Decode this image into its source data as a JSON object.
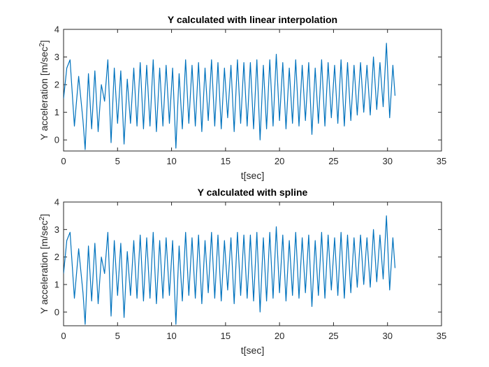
{
  "chart_data": [
    {
      "type": "line",
      "title": "Y calculated with linear interpolation",
      "xlabel": "t[sec]",
      "ylabel": "Y  acceleration  [m/sec",
      "ylabel_sup": "2",
      "ylabel_end": "]",
      "xlim": [
        0,
        35
      ],
      "ylim": [
        -0.4,
        4
      ],
      "xticks": [
        "0",
        "5",
        "10",
        "15",
        "20",
        "25",
        "30",
        "35"
      ],
      "yticks": [
        "0",
        "1",
        "2",
        "3",
        "4"
      ],
      "grid": false,
      "series": [
        {
          "color": "#0072BD",
          "x": [
            0,
            0.3,
            0.6,
            1.0,
            1.4,
            1.8,
            2.0,
            2.3,
            2.6,
            2.9,
            3.2,
            3.5,
            3.8,
            4.1,
            4.4,
            4.7,
            5.0,
            5.3,
            5.6,
            5.9,
            6.2,
            6.5,
            6.8,
            7.1,
            7.4,
            7.7,
            8.0,
            8.3,
            8.6,
            8.9,
            9.2,
            9.5,
            9.8,
            10.1,
            10.4,
            10.7,
            11.0,
            11.3,
            11.6,
            11.9,
            12.2,
            12.5,
            12.8,
            13.1,
            13.4,
            13.7,
            14.0,
            14.3,
            14.6,
            14.9,
            15.2,
            15.5,
            15.8,
            16.1,
            16.4,
            16.7,
            17.0,
            17.3,
            17.6,
            17.9,
            18.2,
            18.5,
            18.8,
            19.1,
            19.4,
            19.7,
            20.0,
            20.3,
            20.6,
            20.9,
            21.2,
            21.5,
            21.8,
            22.1,
            22.4,
            22.7,
            23.0,
            23.3,
            23.6,
            23.9,
            24.2,
            24.5,
            24.8,
            25.1,
            25.4,
            25.7,
            26.0,
            26.3,
            26.6,
            26.9,
            27.2,
            27.5,
            27.8,
            28.1,
            28.4,
            28.7,
            29.0,
            29.3,
            29.6,
            29.9,
            30.2,
            30.5,
            30.7
          ],
          "values": [
            1.5,
            2.6,
            2.9,
            0.5,
            2.3,
            0.7,
            -0.35,
            2.4,
            0.4,
            2.5,
            0.3,
            2.0,
            1.4,
            2.9,
            -0.1,
            2.6,
            0.6,
            2.5,
            -0.15,
            2.2,
            0.6,
            2.6,
            0.5,
            2.8,
            0.4,
            2.7,
            0.5,
            2.9,
            0.3,
            2.6,
            0.5,
            2.7,
            0.6,
            2.6,
            -0.3,
            2.4,
            0.4,
            2.9,
            0.6,
            2.7,
            0.5,
            2.8,
            0.3,
            2.6,
            0.7,
            2.9,
            0.5,
            2.8,
            0.4,
            2.6,
            0.8,
            2.7,
            0.3,
            2.9,
            0.6,
            2.8,
            0.5,
            2.8,
            0.4,
            2.9,
            0.0,
            2.7,
            0.4,
            2.9,
            0.5,
            3.1,
            0.7,
            2.8,
            0.4,
            2.6,
            0.6,
            2.9,
            0.5,
            2.7,
            0.7,
            2.8,
            0.2,
            2.6,
            0.6,
            2.9,
            0.5,
            2.8,
            0.8,
            2.7,
            0.6,
            2.9,
            0.5,
            2.8,
            0.7,
            2.7,
            0.9,
            2.8,
            1.0,
            2.7,
            0.9,
            3.0,
            1.1,
            2.8,
            1.2,
            3.5,
            0.8,
            2.7,
            1.6
          ]
        }
      ]
    },
    {
      "type": "line",
      "title": "Y calculated with spline",
      "xlabel": "t[sec]",
      "ylabel": "Y  acceleration  [m/sec",
      "ylabel_sup": "2",
      "ylabel_end": "]",
      "xlim": [
        0,
        35
      ],
      "ylim": [
        -0.5,
        4
      ],
      "xticks": [
        "0",
        "5",
        "10",
        "15",
        "20",
        "25",
        "30",
        "35"
      ],
      "yticks": [
        "0",
        "1",
        "2",
        "3",
        "4"
      ],
      "grid": false,
      "series": [
        {
          "color": "#0072BD",
          "x": [
            0,
            0.3,
            0.6,
            1.0,
            1.4,
            1.8,
            2.0,
            2.3,
            2.6,
            2.9,
            3.2,
            3.5,
            3.8,
            4.1,
            4.4,
            4.7,
            5.0,
            5.3,
            5.6,
            5.9,
            6.2,
            6.5,
            6.8,
            7.1,
            7.4,
            7.7,
            8.0,
            8.3,
            8.6,
            8.9,
            9.2,
            9.5,
            9.8,
            10.1,
            10.4,
            10.7,
            11.0,
            11.3,
            11.6,
            11.9,
            12.2,
            12.5,
            12.8,
            13.1,
            13.4,
            13.7,
            14.0,
            14.3,
            14.6,
            14.9,
            15.2,
            15.5,
            15.8,
            16.1,
            16.4,
            16.7,
            17.0,
            17.3,
            17.6,
            17.9,
            18.2,
            18.5,
            18.8,
            19.1,
            19.4,
            19.7,
            20.0,
            20.3,
            20.6,
            20.9,
            21.2,
            21.5,
            21.8,
            22.1,
            22.4,
            22.7,
            23.0,
            23.3,
            23.6,
            23.9,
            24.2,
            24.5,
            24.8,
            25.1,
            25.4,
            25.7,
            26.0,
            26.3,
            26.6,
            26.9,
            27.2,
            27.5,
            27.8,
            28.1,
            28.4,
            28.7,
            29.0,
            29.3,
            29.6,
            29.9,
            30.2,
            30.5,
            30.7
          ],
          "values": [
            1.4,
            2.6,
            2.9,
            0.5,
            2.3,
            0.7,
            -0.45,
            2.4,
            0.4,
            2.5,
            0.3,
            2.0,
            1.4,
            2.9,
            -0.15,
            2.6,
            0.6,
            2.5,
            -0.2,
            2.2,
            0.6,
            2.6,
            0.5,
            2.8,
            0.4,
            2.7,
            0.5,
            2.9,
            0.3,
            2.6,
            0.5,
            2.7,
            0.6,
            2.6,
            -0.45,
            2.4,
            0.4,
            2.9,
            0.6,
            2.7,
            0.5,
            2.8,
            0.3,
            2.6,
            0.7,
            2.9,
            0.5,
            2.8,
            0.4,
            2.6,
            0.8,
            2.7,
            0.3,
            2.9,
            0.6,
            2.8,
            0.5,
            2.8,
            0.4,
            2.9,
            0.0,
            2.7,
            0.4,
            2.9,
            0.5,
            3.1,
            0.7,
            2.8,
            0.4,
            2.6,
            0.6,
            2.9,
            0.5,
            2.7,
            0.7,
            2.8,
            0.2,
            2.6,
            0.6,
            2.9,
            0.5,
            2.8,
            0.8,
            2.7,
            0.6,
            2.9,
            0.5,
            2.8,
            0.7,
            2.7,
            0.9,
            2.8,
            1.0,
            2.7,
            0.9,
            3.0,
            1.1,
            2.8,
            1.2,
            3.5,
            0.8,
            2.7,
            1.6
          ]
        }
      ]
    }
  ]
}
